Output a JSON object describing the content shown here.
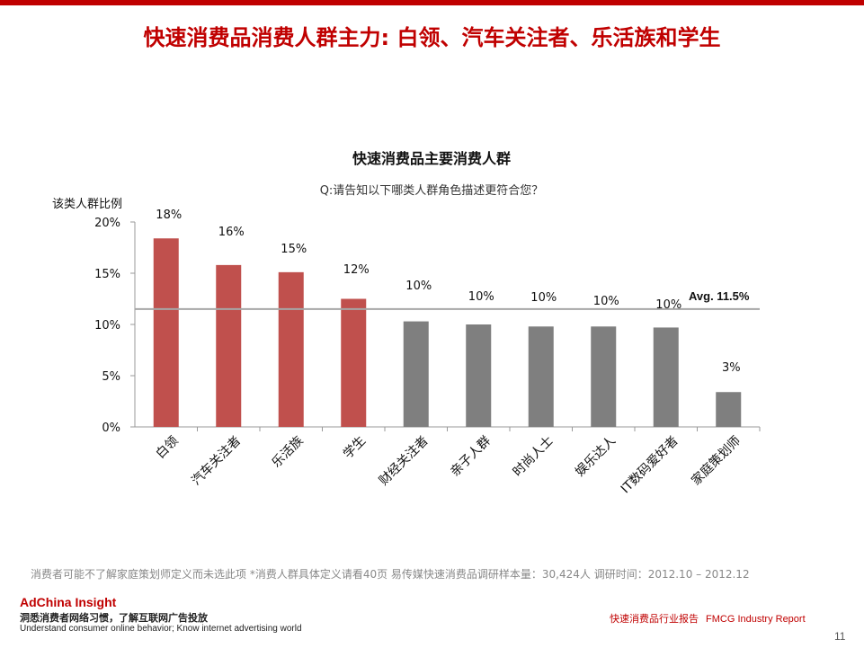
{
  "title": "快速消费品消费人群主力: 白领、汽车关注者、乐活族和学生",
  "chart_data": {
    "type": "bar",
    "title": "快速消费品主要消费人群",
    "subtitle": "Q:请告知以下哪类人群角色描述更符合您？",
    "ylabel": "该类人群比例",
    "xlabel": "",
    "ylim": [
      0,
      20
    ],
    "yticks": [
      "0%",
      "5%",
      "10%",
      "15%",
      "20%"
    ],
    "ytick_values": [
      0,
      5,
      10,
      15,
      20
    ],
    "categories": [
      "白领",
      "汽车关注者",
      "乐活族",
      "学生",
      "财经关注者",
      "亲子人群",
      "时尚人士",
      "娱乐达人",
      "IT数码爱好者",
      "家庭策划师"
    ],
    "values": [
      18.4,
      15.8,
      15.1,
      12.5,
      10.3,
      10.0,
      9.8,
      9.8,
      9.7,
      3.4
    ],
    "data_labels": [
      "18%",
      "16%",
      "15%",
      "12%",
      "10%",
      "10%",
      "10%",
      "10%",
      "10%",
      "3%"
    ],
    "highlight_count": 4,
    "average": {
      "value": 11.5,
      "label": "Avg. 11.5%"
    },
    "colors": {
      "highlight": "#c0504d",
      "normal": "#7f7f7f",
      "avg_line": "#a6a6a6"
    },
    "grid": false
  },
  "footnote": "消费者可能不了解家庭策划师定义而未选此项   *消费人群具体定义请看40页      易传媒快速消费品调研样本量：30,424人   调研时间：2012.10 – 2012.12",
  "brand": {
    "name": "AdChina Insight",
    "tagline_cn": "洞悉消费者网络习惯，了解互联网广告投放",
    "tagline_en": "Understand consumer online behavior; Know internet advertising world"
  },
  "report": {
    "cn": "快速消费品行业报告",
    "en": "FMCG Industry Report"
  },
  "page_number": "11"
}
